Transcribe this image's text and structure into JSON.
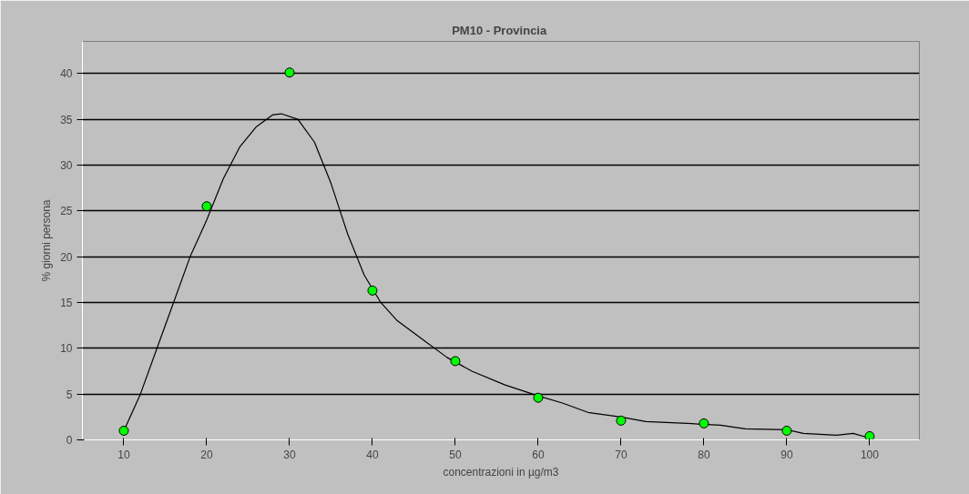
{
  "chart_data": {
    "type": "scatter",
    "title": "PM10  - Provincia",
    "xlabel": "concentrazioni in µg/m3",
    "ylabel": "% giorni persona",
    "x": [
      10,
      20,
      30,
      40,
      50,
      60,
      70,
      80,
      90,
      100
    ],
    "series": [
      {
        "color": "#00ff00",
        "marker": "circle",
        "values": [
          1.0,
          25.5,
          40.1,
          16.3,
          8.6,
          4.6,
          2.1,
          1.8,
          1.0,
          0.4
        ]
      },
      {
        "type": "line",
        "color": "#000000",
        "marker": "none",
        "line_style": "solid",
        "x": [
          10,
          12,
          14,
          16,
          18,
          20,
          22,
          24,
          26,
          28,
          29,
          31,
          33,
          35,
          37,
          39,
          41,
          43,
          46,
          49,
          52,
          56,
          60,
          63,
          66,
          70,
          73,
          78,
          82,
          85,
          90,
          92,
          96,
          98,
          100
        ],
        "values": [
          1.0,
          5,
          10,
          15,
          20,
          24,
          28.5,
          32,
          34.2,
          35.5,
          35.6,
          35,
          32.5,
          28,
          22.5,
          18,
          15,
          13,
          11,
          9,
          7.5,
          6,
          4.8,
          4,
          3,
          2.5,
          2,
          1.8,
          1.6,
          1.2,
          1.1,
          0.7,
          0.5,
          0.7,
          0.2
        ]
      }
    ],
    "xlim": [
      5,
      106
    ],
    "xticks": [
      10,
      20,
      30,
      40,
      50,
      60,
      70,
      80,
      90,
      100
    ],
    "ylim": [
      0,
      43.5
    ],
    "yticks": [
      0,
      5,
      10,
      15,
      20,
      25,
      30,
      35,
      40
    ],
    "grid": "y"
  }
}
